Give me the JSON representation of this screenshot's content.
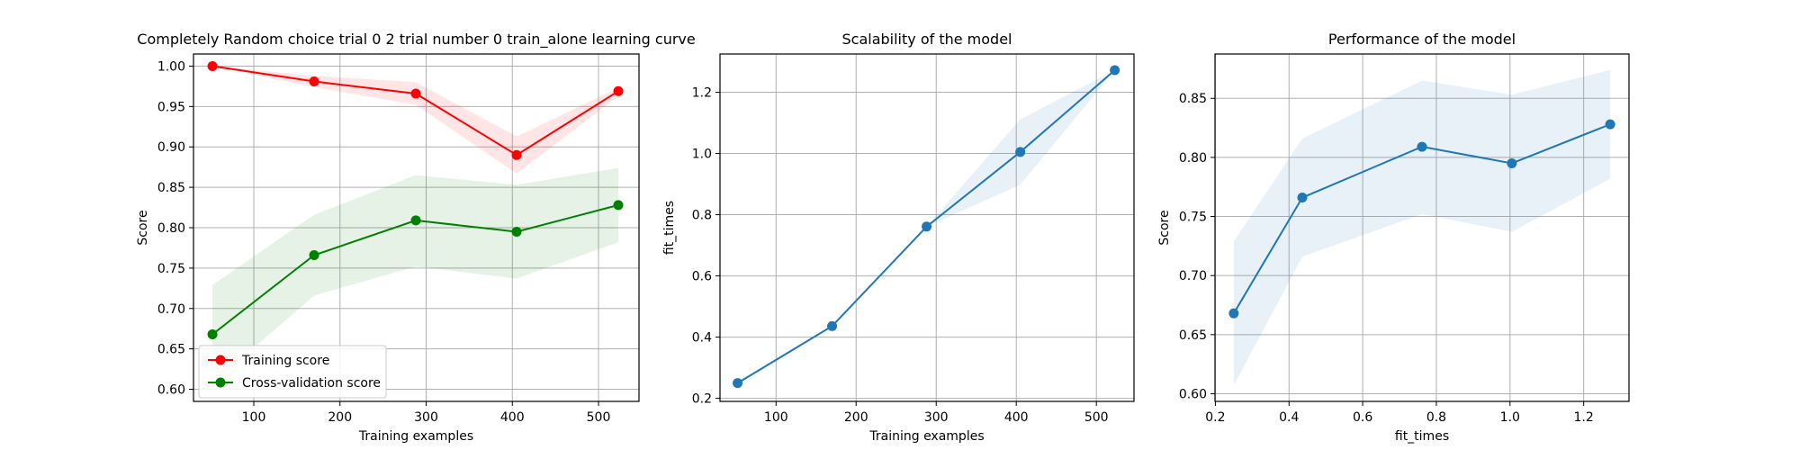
{
  "chart_data": [
    {
      "type": "line",
      "title": "Completely Random choice trial 0 2 trial number 0 train_alone learning curve",
      "xlabel": "Training examples",
      "ylabel": "Score",
      "xlim": [
        30,
        547
      ],
      "ylim": [
        0.585,
        1.015
      ],
      "xticks": [
        100,
        200,
        300,
        400,
        500
      ],
      "yticks": [
        0.6,
        0.65,
        0.7,
        0.75,
        0.8,
        0.85,
        0.9,
        0.95,
        1.0
      ],
      "ytick_decimals": 2,
      "xtick_decimals": 0,
      "grid": true,
      "legend": "lower-left",
      "x": [
        52,
        170,
        288,
        405,
        523
      ],
      "series": [
        {
          "name": "Training score",
          "color": "#ff0000",
          "values": [
            1.0,
            0.981,
            0.966,
            0.89,
            0.969
          ],
          "band_upper": [
            1.0,
            0.988,
            0.98,
            0.913,
            0.973
          ],
          "band_lower": [
            1.0,
            0.974,
            0.952,
            0.867,
            0.963
          ]
        },
        {
          "name": "Cross-validation score",
          "color": "#008000",
          "values": [
            0.668,
            0.766,
            0.809,
            0.795,
            0.828
          ],
          "band_upper": [
            0.729,
            0.816,
            0.865,
            0.853,
            0.874
          ],
          "band_lower": [
            0.607,
            0.716,
            0.752,
            0.737,
            0.782
          ]
        }
      ]
    },
    {
      "type": "line",
      "title": "Scalability of the model",
      "xlabel": "Training examples",
      "ylabel": "fit_times",
      "xlim": [
        30,
        547
      ],
      "ylim": [
        0.19,
        1.325
      ],
      "xticks": [
        100,
        200,
        300,
        400,
        500
      ],
      "yticks": [
        0.2,
        0.4,
        0.6,
        0.8,
        1.0,
        1.2
      ],
      "ytick_decimals": 1,
      "xtick_decimals": 0,
      "grid": true,
      "x": [
        52,
        170,
        288,
        405,
        523
      ],
      "series": [
        {
          "color": "#1f77b4",
          "values": [
            0.25,
            0.436,
            0.761,
            1.005,
            1.272
          ],
          "band_upper": [
            0.25,
            0.436,
            0.761,
            1.112,
            1.272
          ],
          "band_lower": [
            0.25,
            0.436,
            0.761,
            0.898,
            1.272
          ]
        }
      ]
    },
    {
      "type": "line",
      "title": "Performance of the model",
      "xlabel": "fit_times",
      "ylabel": "Score",
      "xlim": [
        0.199,
        1.323
      ],
      "ylim": [
        0.5935,
        0.8875
      ],
      "xticks": [
        0.2,
        0.4,
        0.6,
        0.8,
        1.0,
        1.2
      ],
      "yticks": [
        0.6,
        0.65,
        0.7,
        0.75,
        0.8,
        0.85
      ],
      "ytick_decimals": 2,
      "xtick_decimals": 1,
      "grid": true,
      "x": [
        0.25,
        0.436,
        0.761,
        1.005,
        1.272
      ],
      "series": [
        {
          "color": "#1f77b4",
          "values": [
            0.668,
            0.766,
            0.809,
            0.795,
            0.828
          ],
          "band_upper": [
            0.729,
            0.816,
            0.865,
            0.853,
            0.874
          ],
          "band_lower": [
            0.607,
            0.716,
            0.752,
            0.737,
            0.782
          ]
        }
      ]
    }
  ]
}
